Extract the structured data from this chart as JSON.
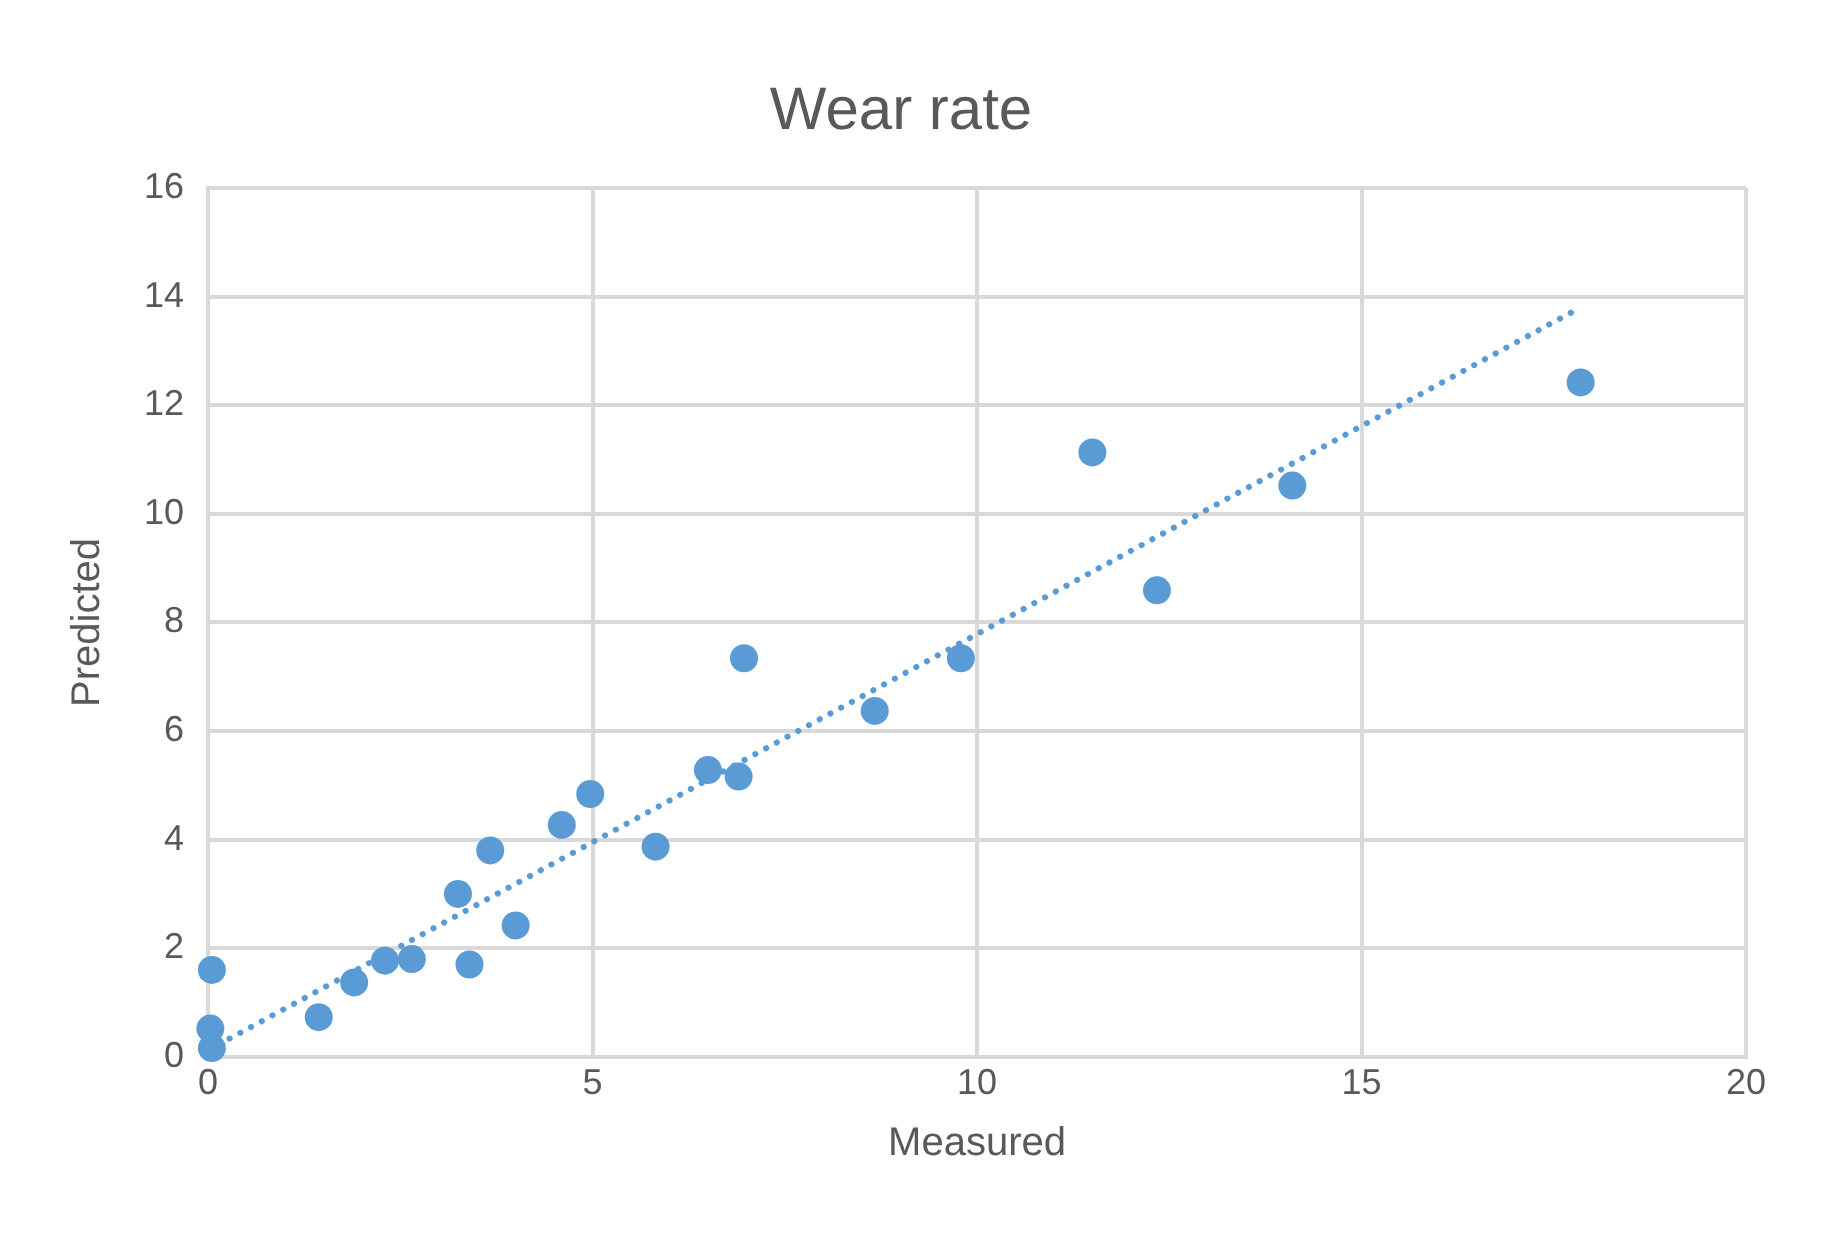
{
  "chart_data": {
    "type": "scatter",
    "title": "Wear rate",
    "xlabel": "Measured",
    "ylabel": "Predicted",
    "xlim": [
      0,
      20
    ],
    "xticks": [
      0,
      5,
      10,
      15,
      20
    ],
    "ylim": [
      0,
      16
    ],
    "yticks": [
      0,
      2,
      4,
      6,
      8,
      10,
      12,
      14,
      16
    ],
    "grid": true,
    "legend": false,
    "marker": "circle",
    "series": [
      {
        "type": "scatter",
        "color": "#5b9bd5",
        "x": [
          0.05,
          0.03,
          0.05,
          1.44,
          1.9,
          2.3,
          2.65,
          3.25,
          3.4,
          3.67,
          4.0,
          4.6,
          4.97,
          5.82,
          6.5,
          6.9,
          6.97,
          8.67,
          9.79,
          11.5,
          12.34,
          14.1,
          17.85
        ],
        "values": [
          0.16,
          0.52,
          1.6,
          0.73,
          1.37,
          1.77,
          1.8,
          3.0,
          1.7,
          3.8,
          2.42,
          4.27,
          4.84,
          3.87,
          5.28,
          5.16,
          7.34,
          6.37,
          7.34,
          11.13,
          8.59,
          10.52,
          12.42
        ]
      },
      {
        "type": "line",
        "color": "#5b9bd5",
        "line_style": "dotted",
        "marker": "none",
        "x": [
          0,
          17.85
        ],
        "values": [
          0.12,
          13.8
        ]
      }
    ]
  }
}
